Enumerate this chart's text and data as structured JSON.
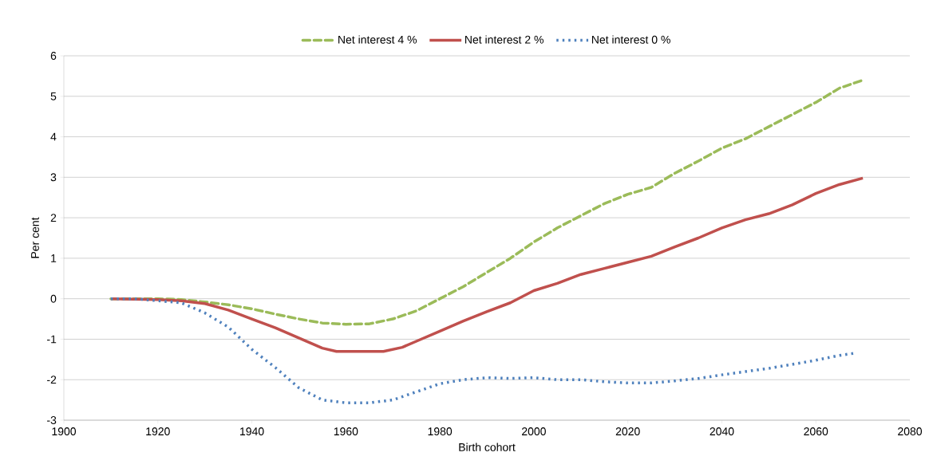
{
  "chart_data": {
    "type": "line",
    "xlabel": "Birth cohort",
    "ylabel": "Per cent",
    "xlim": [
      1900,
      2080
    ],
    "xticks": [
      1900,
      1920,
      1940,
      1960,
      1980,
      2000,
      2020,
      2040,
      2060,
      2080
    ],
    "ylim": [
      -3,
      6
    ],
    "yticks": [
      -3,
      -2,
      -1,
      0,
      1,
      2,
      3,
      4,
      5,
      6
    ],
    "grid": "y",
    "legend": "top",
    "series": [
      {
        "name": "Net interest 4 %",
        "color": "#9bbb59",
        "line_style": "dashed",
        "x": [
          1910,
          1920,
          1925,
          1930,
          1935,
          1940,
          1945,
          1950,
          1955,
          1960,
          1965,
          1970,
          1975,
          1980,
          1985,
          1990,
          1995,
          2000,
          2005,
          2010,
          2015,
          2020,
          2025,
          2030,
          2035,
          2040,
          2045,
          2050,
          2055,
          2060,
          2065,
          2070
        ],
        "values": [
          0,
          0,
          -0.02,
          -0.08,
          -0.15,
          -0.25,
          -0.38,
          -0.5,
          -0.6,
          -0.63,
          -0.62,
          -0.5,
          -0.3,
          0,
          0.3,
          0.65,
          1.0,
          1.4,
          1.75,
          2.05,
          2.35,
          2.58,
          2.75,
          3.1,
          3.4,
          3.72,
          3.95,
          4.25,
          4.55,
          4.85,
          5.2,
          5.4
        ]
      },
      {
        "name": "Net interest 2 %",
        "color": "#c0504d",
        "line_style": "solid",
        "x": [
          1910,
          1920,
          1925,
          1930,
          1935,
          1940,
          1945,
          1950,
          1955,
          1958,
          1960,
          1968,
          1972,
          1975,
          1980,
          1985,
          1990,
          1995,
          2000,
          2005,
          2010,
          2015,
          2020,
          2025,
          2030,
          2035,
          2040,
          2045,
          2050,
          2055,
          2060,
          2065,
          2070
        ],
        "values": [
          0,
          -0.02,
          -0.05,
          -0.12,
          -0.28,
          -0.5,
          -0.72,
          -0.97,
          -1.22,
          -1.3,
          -1.3,
          -1.3,
          -1.2,
          -1.05,
          -0.8,
          -0.55,
          -0.32,
          -0.1,
          0.2,
          0.38,
          0.6,
          0.75,
          0.9,
          1.05,
          1.28,
          1.5,
          1.75,
          1.95,
          2.1,
          2.32,
          2.6,
          2.82,
          2.98
        ]
      },
      {
        "name": "Net interest 0 %",
        "color": "#4f81bd",
        "line_style": "dotted",
        "x": [
          1910,
          1915,
          1920,
          1925,
          1930,
          1935,
          1940,
          1945,
          1950,
          1955,
          1960,
          1965,
          1970,
          1975,
          1980,
          1985,
          1990,
          1995,
          2000,
          2005,
          2010,
          2015,
          2020,
          2025,
          2030,
          2035,
          2040,
          2045,
          2050,
          2055,
          2060,
          2065,
          2068
        ],
        "values": [
          0,
          0,
          -0.05,
          -0.1,
          -0.35,
          -0.7,
          -1.25,
          -1.7,
          -2.2,
          -2.5,
          -2.57,
          -2.57,
          -2.5,
          -2.3,
          -2.1,
          -2.0,
          -1.95,
          -1.97,
          -1.95,
          -2.0,
          -2.0,
          -2.05,
          -2.08,
          -2.08,
          -2.03,
          -1.97,
          -1.88,
          -1.8,
          -1.72,
          -1.62,
          -1.52,
          -1.4,
          -1.35
        ]
      }
    ]
  }
}
